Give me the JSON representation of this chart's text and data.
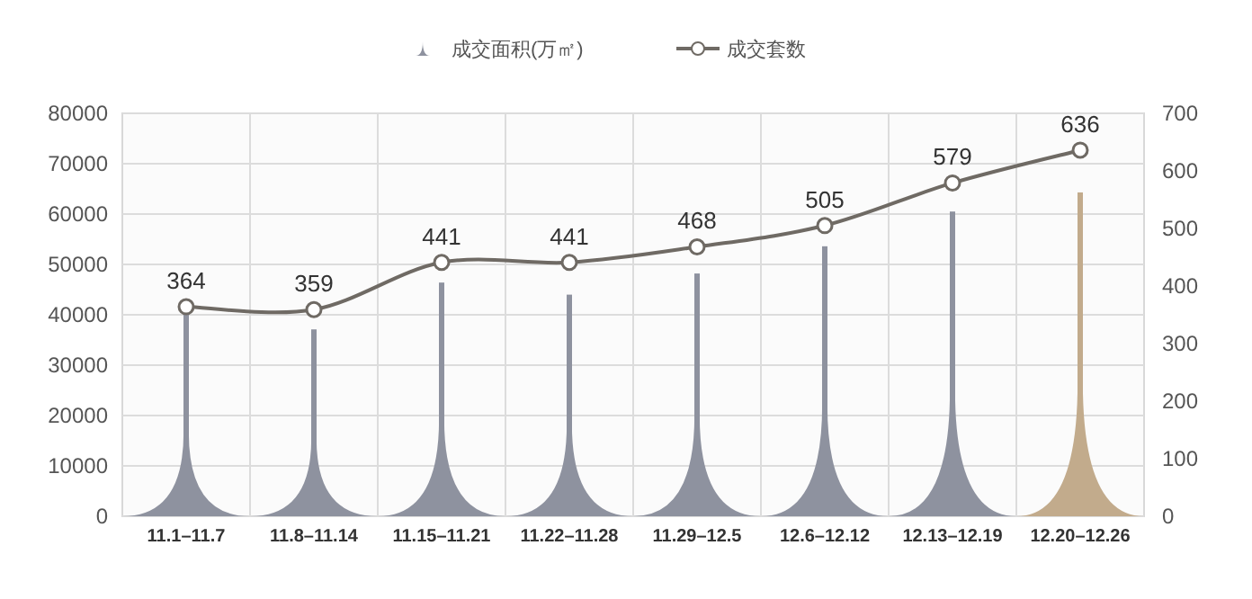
{
  "chart_data": {
    "type": "bar",
    "categories": [
      "11.1–11.7",
      "11.8–11.14",
      "11.15–11.21",
      "11.22–11.28",
      "11.29–12.5",
      "12.6–12.12",
      "12.13–12.19",
      "12.20–12.26"
    ],
    "series": [
      {
        "name": "成交面积(万㎡)",
        "color": "#8e929f",
        "colors": [
          "#8e929f",
          "#8e929f",
          "#8e929f",
          "#8e929f",
          "#8e929f",
          "#8e929f",
          "#8e929f",
          "#c2ab8c"
        ],
        "values": [
          40100,
          37100,
          46400,
          44000,
          48200,
          53600,
          60500,
          64300
        ]
      },
      {
        "name": "成交套数",
        "type": "line",
        "axis": "y2",
        "color": "#6f6a64",
        "marker": "circle",
        "data_labels": true,
        "values": [
          364,
          359,
          441,
          441,
          468,
          505,
          579,
          636
        ]
      }
    ],
    "ylim": [
      0,
      80000
    ],
    "yticks": [
      0,
      10000,
      20000,
      30000,
      40000,
      50000,
      60000,
      70000,
      80000
    ],
    "y2lim": [
      0,
      700
    ],
    "y2ticks": [
      0,
      100,
      200,
      300,
      400,
      500,
      600,
      700
    ],
    "grid": true,
    "legend": "top"
  }
}
